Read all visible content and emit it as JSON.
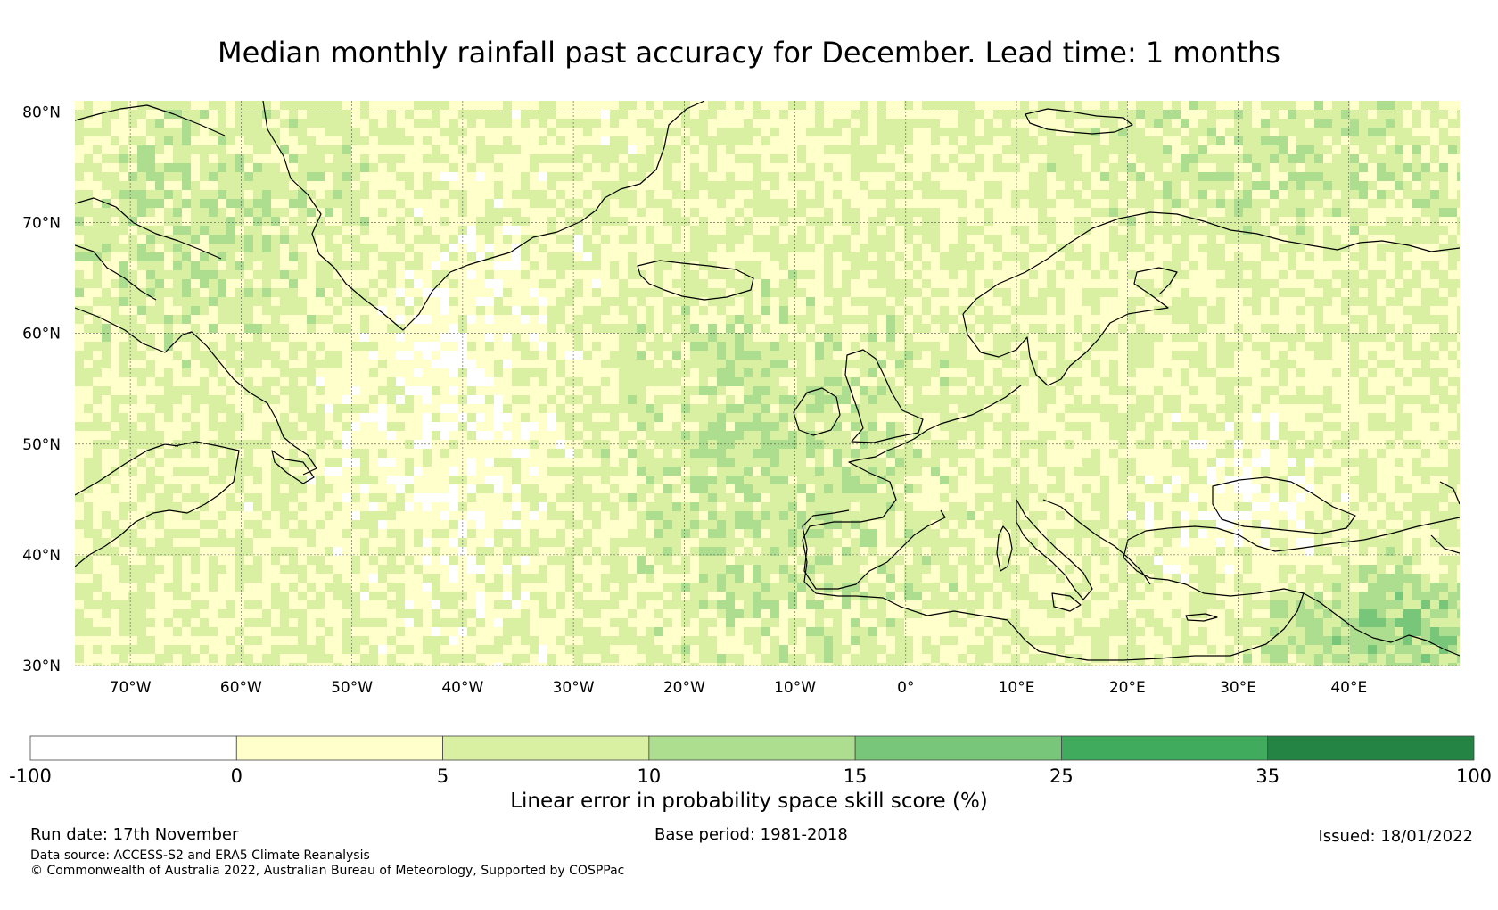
{
  "title": "Median monthly rainfall past accuracy for December. Lead time: 1 months",
  "map": {
    "lon_range": [
      -75,
      50
    ],
    "lat_range": [
      30,
      81
    ],
    "lat_ticks": [
      {
        "value": 80,
        "label": "80°N"
      },
      {
        "value": 70,
        "label": "70°N"
      },
      {
        "value": 60,
        "label": "60°N"
      },
      {
        "value": 50,
        "label": "50°N"
      },
      {
        "value": 40,
        "label": "40°N"
      },
      {
        "value": 30,
        "label": "30°N"
      }
    ],
    "lon_ticks": [
      {
        "value": -70,
        "label": "70°W"
      },
      {
        "value": -60,
        "label": "60°W"
      },
      {
        "value": -50,
        "label": "50°W"
      },
      {
        "value": -40,
        "label": "40°W"
      },
      {
        "value": -30,
        "label": "30°W"
      },
      {
        "value": -20,
        "label": "20°W"
      },
      {
        "value": -10,
        "label": "10°W"
      },
      {
        "value": 0,
        "label": "0°"
      },
      {
        "value": 10,
        "label": "10°E"
      },
      {
        "value": 20,
        "label": "20°E"
      },
      {
        "value": 30,
        "label": "30°E"
      },
      {
        "value": 40,
        "label": "40°E"
      }
    ]
  },
  "colorbar": {
    "label": "Linear error in probability space skill score (%)",
    "ticks": [
      "-100",
      "0",
      "5",
      "10",
      "15",
      "25",
      "35",
      "100"
    ],
    "colors": [
      "#ffffff",
      "#ffffcc",
      "#d9f0a3",
      "#addd8e",
      "#78c679",
      "#41ab5d",
      "#238443"
    ]
  },
  "footer": {
    "run_date": "Run date: 17th November",
    "base_period": "Base period: 1981-2018",
    "issued": "Issued: 18/01/2022",
    "data_source": "Data source: ACCESS-S2 and ERA5 Climate Reanalysis",
    "copyright": "© Commonwealth of Australia 2022, Australian Bureau of Meteorology, Supported by COSPPac"
  }
}
